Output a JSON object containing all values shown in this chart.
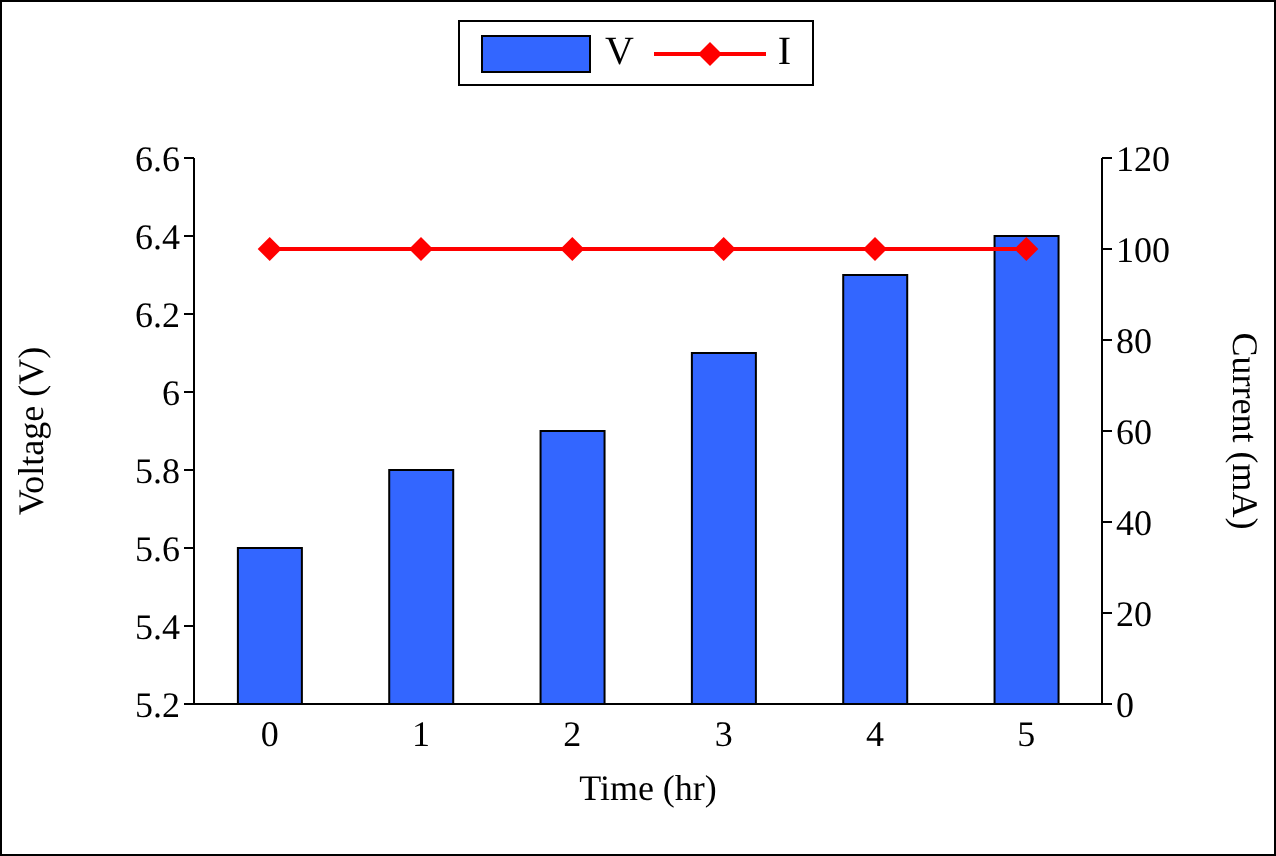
{
  "chart_data": {
    "type": "bar",
    "xlabel": "Time (hr)",
    "ylabel": "Voltage (V)",
    "y2label": "Current (mA)",
    "categories": [
      "0",
      "1",
      "2",
      "3",
      "4",
      "5"
    ],
    "series": [
      {
        "name": "V",
        "color": "#3366ff",
        "values": [
          5.6,
          5.8,
          5.9,
          6.1,
          6.3,
          6.4
        ]
      },
      {
        "name": "I",
        "type": "line",
        "axis": "y2",
        "color": "#ff0000",
        "marker": "diamond",
        "line_style": "solid",
        "values": [
          100,
          100,
          100,
          100,
          100,
          100
        ]
      }
    ],
    "ylim": [
      5.2,
      6.6
    ],
    "yticks": [
      5.2,
      5.4,
      5.6,
      5.8,
      6,
      6.2,
      6.4,
      6.6
    ],
    "y2lim": [
      0,
      120
    ],
    "y2ticks": [
      0,
      20,
      40,
      60,
      80,
      100,
      120
    ],
    "legend": "top"
  }
}
